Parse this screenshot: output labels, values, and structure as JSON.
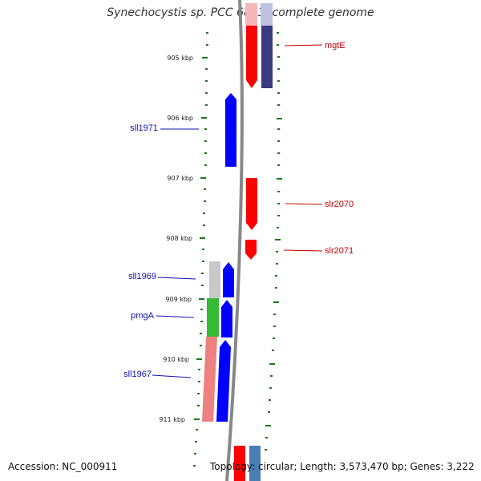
{
  "title": "Synechocystis sp. PCC 6803, complete genome",
  "footer": {
    "accession": "Accession: NC_000911",
    "topology": "Topology: circular; Length: 3,573,470 bp; Genes: 3,222"
  },
  "ticks": [
    "905 kbp",
    "906 kbp",
    "907 kbp",
    "908 kbp",
    "909 kbp",
    "910 kbp",
    "911 kbp"
  ],
  "gene_labels": [
    {
      "id": "mgtE",
      "text": "mgtE",
      "strand": "plus",
      "color": "#c00000"
    },
    {
      "id": "sll1971",
      "text": "sll1971",
      "strand": "minus",
      "color": "#1010b0"
    },
    {
      "id": "slr2070",
      "text": "slr2070",
      "strand": "plus",
      "color": "#c00000"
    },
    {
      "id": "slr2071",
      "text": "slr2071",
      "strand": "plus",
      "color": "#c00000"
    },
    {
      "id": "sll1969",
      "text": "sll1969",
      "strand": "minus",
      "color": "#1010b0"
    },
    {
      "id": "pmgA",
      "text": "pmgA",
      "strand": "minus",
      "color": "#1010b0"
    },
    {
      "id": "sll1967",
      "text": "sll1967",
      "strand": "minus",
      "color": "#1010b0"
    }
  ],
  "colors": {
    "backbone": "#888888",
    "plus_gene": "#ff0000",
    "minus_gene": "#0000ff",
    "tick": "#1a7a1a",
    "operon_gray": "#c8c8c8",
    "operon_green": "#33bb33",
    "operon_pink": "#ee8080",
    "dark_navy": "#3a3a80",
    "pale_lavender": "#c0c0e0",
    "pale_pink": "#f4b8b8",
    "steelblue": "#4a7fb5"
  }
}
